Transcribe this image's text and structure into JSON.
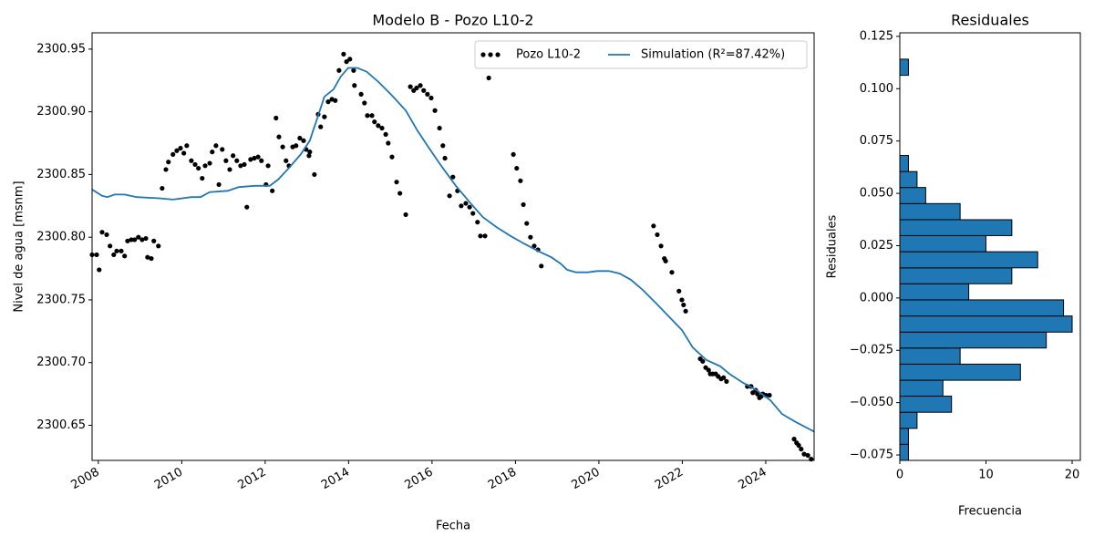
{
  "chart_data": [
    {
      "type": "line",
      "title": "Modelo B - Pozo L10-2",
      "xlabel": "Fecha",
      "ylabel": "Nivel de agua [msnm]",
      "xlim": [
        2007.85,
        2025.16
      ],
      "xticks": [
        2008,
        2010,
        2012,
        2014,
        2016,
        2018,
        2020,
        2022,
        2024
      ],
      "xtick_rotation": 30,
      "ylim": [
        2300.622,
        2300.963
      ],
      "yticks": [
        {
          "value": 2300.65,
          "label": "2300.65"
        },
        {
          "value": 2300.7,
          "label": "2300.70"
        },
        {
          "value": 2300.75,
          "label": "2300.75"
        },
        {
          "value": 2300.8,
          "label": "2300.80"
        },
        {
          "value": 2300.85,
          "label": "2300.85"
        },
        {
          "value": 2300.9,
          "label": "2300.90"
        },
        {
          "value": 2300.95,
          "label": "2300.95"
        }
      ],
      "grid": false,
      "legend": "upper right",
      "series": [
        {
          "name": "Pozo L10-2",
          "mode": "markers",
          "color": "#000000",
          "x": [
            2007.85,
            2007.96,
            2008.02,
            2008.09,
            2008.2,
            2008.28,
            2008.37,
            2008.44,
            2008.55,
            2008.63,
            2008.7,
            2008.79,
            2008.87,
            2008.96,
            2009.05,
            2009.14,
            2009.18,
            2009.27,
            2009.33,
            2009.44,
            2009.53,
            2009.62,
            2009.68,
            2009.79,
            2009.88,
            2009.97,
            2010.05,
            2010.12,
            2010.23,
            2010.32,
            2010.4,
            2010.49,
            2010.56,
            2010.67,
            2010.73,
            2010.82,
            2010.89,
            2010.97,
            2011.06,
            2011.15,
            2011.23,
            2011.32,
            2011.41,
            2011.5,
            2011.56,
            2011.65,
            2011.74,
            2011.83,
            2011.91,
            2012.02,
            2012.07,
            2012.17,
            2012.26,
            2012.33,
            2012.42,
            2012.5,
            2012.57,
            2012.66,
            2012.74,
            2012.83,
            2012.92,
            2012.98,
            2013.05,
            2013.07,
            2013.18,
            2013.27,
            2013.33,
            2013.42,
            2013.51,
            2013.6,
            2013.68,
            2013.77,
            2013.88,
            2013.95,
            2014.03,
            2014.12,
            2014.14,
            2014.3,
            2014.38,
            2014.45,
            2014.56,
            2014.62,
            2014.71,
            2014.8,
            2014.89,
            2014.95,
            2015.04,
            2015.15,
            2015.23,
            2015.37,
            2015.48,
            2015.56,
            2015.63,
            2015.72,
            2015.8,
            2015.89,
            2015.98,
            2016.07,
            2016.18,
            2016.26,
            2016.31,
            2016.42,
            2016.5,
            2016.61,
            2016.7,
            2016.81,
            2016.9,
            2016.98,
            2017.09,
            2017.16,
            2017.27,
            2017.36,
            2017.95,
            2018.03,
            2018.12,
            2018.19,
            2018.27,
            2018.36,
            2018.45,
            2018.54,
            2018.62,
            2021.31,
            2021.4,
            2021.49,
            2021.57,
            2021.6,
            2021.75,
            2021.92,
            2021.99,
            2022.03,
            2022.08,
            2022.43,
            2022.49,
            2022.56,
            2022.63,
            2022.67,
            2022.73,
            2022.8,
            2022.86,
            2022.93,
            2022.99,
            2023.06,
            2023.56,
            2023.65,
            2023.69,
            2023.76,
            2023.8,
            2023.85,
            2023.89,
            2023.93,
            2024.0,
            2024.09,
            2024.68,
            2024.74,
            2024.79,
            2024.85,
            2024.92,
            2025.01,
            2025.09
          ],
          "values": [
            2300.786,
            2300.786,
            2300.774,
            2300.804,
            2300.802,
            2300.793,
            2300.786,
            2300.789,
            2300.789,
            2300.785,
            2300.797,
            2300.798,
            2300.798,
            2300.8,
            2300.798,
            2300.799,
            2300.784,
            2300.783,
            2300.797,
            2300.793,
            2300.839,
            2300.854,
            2300.86,
            2300.866,
            2300.869,
            2300.871,
            2300.867,
            2300.873,
            2300.861,
            2300.858,
            2300.855,
            2300.847,
            2300.857,
            2300.859,
            2300.868,
            2300.873,
            2300.842,
            2300.87,
            2300.861,
            2300.854,
            2300.865,
            2300.861,
            2300.857,
            2300.858,
            2300.824,
            2300.862,
            2300.863,
            2300.864,
            2300.861,
            2300.842,
            2300.857,
            2300.837,
            2300.895,
            2300.88,
            2300.872,
            2300.861,
            2300.857,
            2300.872,
            2300.873,
            2300.879,
            2300.877,
            2300.87,
            2300.865,
            2300.868,
            2300.85,
            2300.898,
            2300.888,
            2300.896,
            2300.908,
            2300.91,
            2300.909,
            2300.933,
            2300.946,
            2300.94,
            2300.942,
            2300.933,
            2300.921,
            2300.914,
            2300.907,
            2300.897,
            2300.897,
            2300.892,
            2300.889,
            2300.887,
            2300.882,
            2300.875,
            2300.864,
            2300.844,
            2300.835,
            2300.818,
            2300.92,
            2300.917,
            2300.919,
            2300.921,
            2300.917,
            2300.914,
            2300.911,
            2300.901,
            2300.887,
            2300.873,
            2300.863,
            2300.833,
            2300.848,
            2300.837,
            2300.825,
            2300.827,
            2300.824,
            2300.819,
            2300.812,
            2300.801,
            2300.801,
            2300.927,
            2300.866,
            2300.855,
            2300.845,
            2300.826,
            2300.811,
            2300.8,
            2300.793,
            2300.79,
            2300.777,
            2300.809,
            2300.802,
            2300.793,
            2300.783,
            2300.781,
            2300.772,
            2300.757,
            2300.75,
            2300.746,
            2300.741,
            2300.703,
            2300.701,
            2300.696,
            2300.694,
            2300.691,
            2300.691,
            2300.691,
            2300.689,
            2300.687,
            2300.688,
            2300.685,
            2300.681,
            2300.681,
            2300.676,
            2300.678,
            2300.675,
            2300.672,
            2300.673,
            2300.675,
            2300.674,
            2300.674,
            2300.639,
            2300.636,
            2300.634,
            2300.631,
            2300.627,
            2300.626,
            2300.623
          ]
        },
        {
          "name": "Simulation (R²=87.42%)",
          "mode": "lines",
          "color": "#1f77b4",
          "x": [
            2007.85,
            2008.09,
            2008.22,
            2008.39,
            2008.63,
            2008.92,
            2009.46,
            2009.79,
            2010.23,
            2010.45,
            2010.67,
            2011.1,
            2011.37,
            2011.76,
            2012.11,
            2012.31,
            2012.59,
            2012.85,
            2013.07,
            2013.25,
            2013.42,
            2013.64,
            2013.81,
            2013.99,
            2014.21,
            2014.43,
            2014.71,
            2015.04,
            2015.37,
            2015.65,
            2015.91,
            2016.24,
            2016.57,
            2016.9,
            2017.22,
            2017.55,
            2017.88,
            2018.2,
            2018.54,
            2018.86,
            2019.08,
            2019.24,
            2019.45,
            2019.74,
            2019.96,
            2020.24,
            2020.5,
            2020.77,
            2021.05,
            2021.38,
            2021.7,
            2021.99,
            2022.25,
            2022.58,
            2022.91,
            2023.13,
            2023.45,
            2023.78,
            2024.11,
            2024.39,
            2024.7,
            2025.16
          ],
          "values": [
            2300.838,
            2300.833,
            2300.832,
            2300.834,
            2300.834,
            2300.832,
            2300.831,
            2300.83,
            2300.832,
            2300.832,
            2300.836,
            2300.837,
            2300.84,
            2300.841,
            2300.841,
            2300.846,
            2300.856,
            2300.866,
            2300.877,
            2300.895,
            2300.912,
            2300.918,
            2300.928,
            2300.935,
            2300.935,
            2300.932,
            2300.924,
            2300.913,
            2300.901,
            2300.885,
            2300.872,
            2300.856,
            2300.841,
            2300.828,
            2300.816,
            2300.808,
            2300.801,
            2300.795,
            2300.789,
            2300.784,
            2300.779,
            2300.774,
            2300.772,
            2300.772,
            2300.773,
            2300.773,
            2300.771,
            2300.766,
            2300.758,
            2300.747,
            2300.736,
            2300.726,
            2300.712,
            2300.702,
            2300.697,
            2300.691,
            2300.684,
            2300.678,
            2300.67,
            2300.659,
            2300.653,
            2300.645
          ]
        }
      ]
    },
    {
      "type": "histogram",
      "orientation": "horizontal",
      "title": "Residuales",
      "xlabel": "Frecuencia",
      "ylabel": "Residuales",
      "color": "#1f77b4",
      "edgecolor": "#000000",
      "xlim": [
        0,
        20.95
      ],
      "xticks": [
        0,
        10,
        20
      ],
      "ylim": [
        -0.0776,
        0.1267
      ],
      "yticks": [
        {
          "value": -0.075,
          "label": "−0.075"
        },
        {
          "value": -0.05,
          "label": "−0.050"
        },
        {
          "value": -0.025,
          "label": "−0.025"
        },
        {
          "value": 0,
          "label": "0.000"
        },
        {
          "value": 0.025,
          "label": "0.025"
        },
        {
          "value": 0.05,
          "label": "0.050"
        },
        {
          "value": 0.075,
          "label": "0.075"
        },
        {
          "value": 0.1,
          "label": "0.100"
        },
        {
          "value": 0.125,
          "label": "0.125"
        }
      ],
      "bins": [
        -0.0776,
        -0.0699,
        -0.0623,
        -0.0546,
        -0.0469,
        -0.0393,
        -0.0316,
        -0.0239,
        -0.0163,
        -0.0086,
        -0.0009,
        0.0068,
        0.0144,
        0.0221,
        0.0298,
        0.0374,
        0.0451,
        0.0528,
        0.0604,
        0.0681,
        0.0758,
        0.0834,
        0.0911,
        0.0988,
        0.1064,
        0.1141
      ],
      "values": [
        1,
        1,
        2,
        6,
        5,
        14,
        7,
        17,
        20,
        19,
        8,
        13,
        16,
        10,
        13,
        7,
        3,
        2,
        1,
        0,
        0,
        0,
        0,
        0,
        1
      ]
    }
  ]
}
